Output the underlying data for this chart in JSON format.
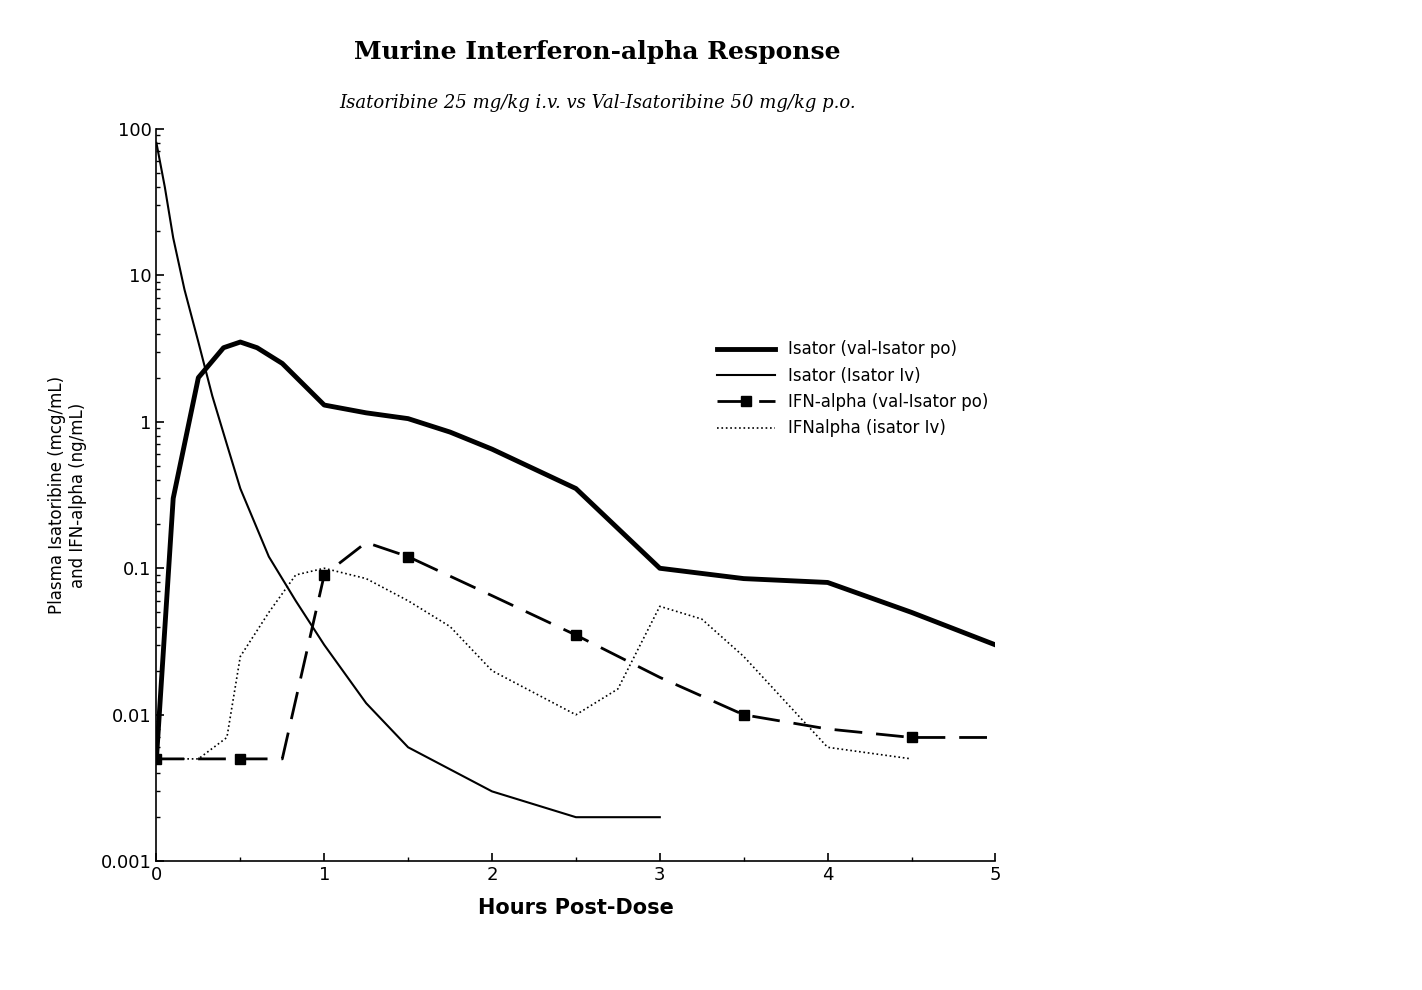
{
  "title": "Murine Interferon-alpha Response",
  "subtitle": "Isatoribine 25 mg/kg i.v. vs Val-Isatoribine 50 mg/kg p.o.",
  "xlabel": "Hours Post-Dose",
  "ylabel": "Plasma Isatoribine (mcg/mL)\nand IFN-alpha (ng/mL)",
  "ylim_log": [
    0.001,
    100
  ],
  "xlim": [
    0,
    5
  ],
  "isator_val_po_x": [
    0.0,
    0.1,
    0.25,
    0.4,
    0.5,
    0.6,
    0.75,
    1.0,
    1.25,
    1.5,
    1.75,
    2.0,
    2.5,
    3.0,
    3.5,
    4.0,
    4.5,
    5.0
  ],
  "isator_val_po_y": [
    0.005,
    0.3,
    2.0,
    3.2,
    3.5,
    3.2,
    2.5,
    1.3,
    1.15,
    1.05,
    0.85,
    0.65,
    0.35,
    0.1,
    0.085,
    0.08,
    0.05,
    0.03
  ],
  "isator_iv_x": [
    0.0,
    0.05,
    0.1,
    0.167,
    0.25,
    0.333,
    0.42,
    0.5,
    0.67,
    0.83,
    1.0,
    1.25,
    1.5,
    2.0,
    2.5,
    3.0
  ],
  "isator_iv_y": [
    80.0,
    40.0,
    18.0,
    8.0,
    3.5,
    1.5,
    0.7,
    0.35,
    0.12,
    0.06,
    0.03,
    0.012,
    0.006,
    0.003,
    0.002,
    0.002
  ],
  "ifn_val_po_x": [
    0.0,
    0.25,
    0.5,
    0.75,
    1.0,
    1.25,
    1.5,
    2.0,
    2.5,
    3.0,
    3.5,
    4.0,
    4.5,
    5.0
  ],
  "ifn_val_po_y": [
    0.005,
    0.005,
    0.005,
    0.005,
    0.09,
    0.15,
    0.12,
    0.065,
    0.035,
    0.018,
    0.01,
    0.008,
    0.007,
    0.007
  ],
  "ifn_iv_x": [
    0.0,
    0.25,
    0.42,
    0.5,
    0.67,
    0.83,
    1.0,
    1.25,
    1.5,
    1.75,
    2.0,
    2.5,
    2.75,
    3.0,
    3.25,
    3.5,
    4.0,
    4.5
  ],
  "ifn_iv_y": [
    0.005,
    0.005,
    0.007,
    0.025,
    0.05,
    0.09,
    0.1,
    0.085,
    0.06,
    0.04,
    0.02,
    0.01,
    0.015,
    0.055,
    0.045,
    0.025,
    0.006,
    0.005
  ],
  "legend_labels": [
    "Isator (val-Isator po)",
    "Isator (Isator Iv)",
    "IFN-alpha (val-Isator po)",
    "IFNalpha (isator Iv)"
  ],
  "background_color": "#ffffff",
  "line_color": "#000000"
}
